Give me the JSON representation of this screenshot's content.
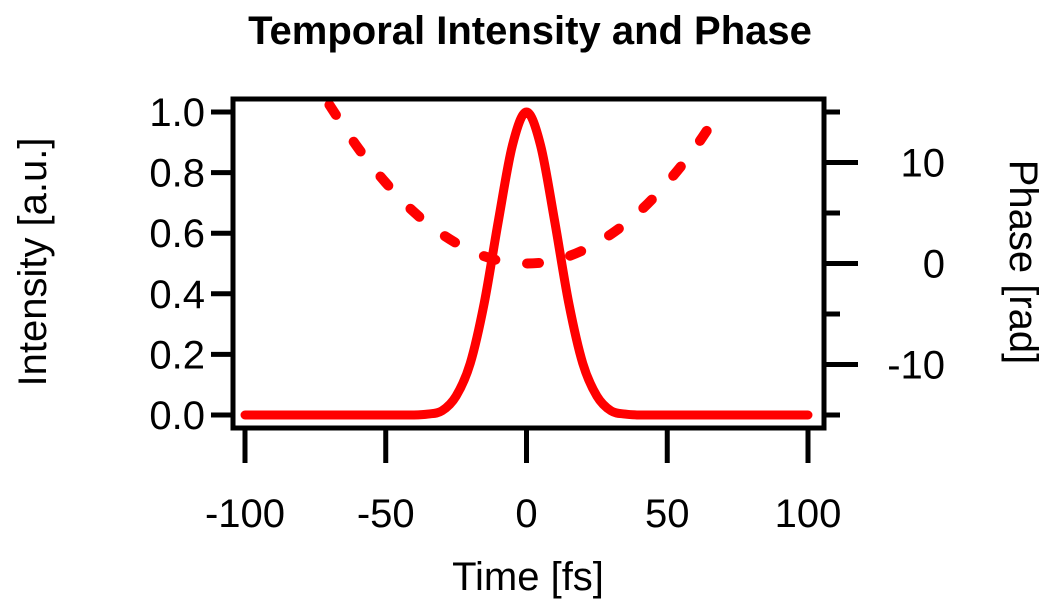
{
  "chart_data": {
    "type": "line",
    "title": "Temporal Intensity and Phase",
    "xlabel": "Time [fs]",
    "ylabel": "Intensity [a.u.]",
    "y2label": "Phase [rad]",
    "xlim": [
      -100,
      100
    ],
    "ylim": [
      0,
      1.0
    ],
    "y2lim": [
      -15,
      15
    ],
    "xticks": [
      -100,
      -50,
      0,
      50,
      100
    ],
    "xtick_labels": [
      "-100",
      "-50",
      "0",
      "50",
      "100"
    ],
    "yticks": [
      0,
      0.2,
      0.4,
      0.6,
      0.8,
      1.0
    ],
    "ytick_labels": [
      "0.0",
      "0.2",
      "0.4",
      "0.6",
      "0.8",
      "1.0"
    ],
    "y2ticks_major": [
      -10,
      0,
      10
    ],
    "y2tick_labels": [
      "-10",
      "0",
      "10"
    ],
    "y2ticks_minor": [
      -15,
      -5,
      5,
      15
    ],
    "grid": false,
    "legend": "none",
    "series": [
      {
        "name": "Intensity",
        "axis": "left",
        "style": "solid",
        "color": "#ff0000",
        "x": [
          -100,
          -90,
          -80,
          -70,
          -60,
          -50,
          -40,
          -35,
          -30,
          -25,
          -20,
          -15,
          -10,
          -5,
          0,
          5,
          10,
          15,
          20,
          25,
          30,
          35,
          40,
          50,
          60,
          70,
          80,
          90,
          100
        ],
        "y": [
          0,
          0,
          0,
          0,
          0,
          0,
          0,
          0.003,
          0.014,
          0.0625,
          0.17,
          0.37,
          0.64,
          0.89,
          1.0,
          0.89,
          0.64,
          0.37,
          0.17,
          0.0625,
          0.014,
          0.003,
          0,
          0,
          0,
          0,
          0,
          0,
          0
        ]
      },
      {
        "name": "Phase",
        "axis": "right",
        "style": "dashed",
        "color": "#ff0000",
        "x": [
          -70,
          -60,
          -50,
          -40,
          -30,
          -20,
          -10,
          0,
          10,
          20,
          30,
          40,
          50,
          60,
          70
        ],
        "y": [
          15.7,
          11.5,
          8.0,
          5.1,
          2.9,
          1.3,
          0.3,
          0,
          0.3,
          1.3,
          2.9,
          5.1,
          8.0,
          11.5,
          15.7
        ]
      }
    ]
  }
}
